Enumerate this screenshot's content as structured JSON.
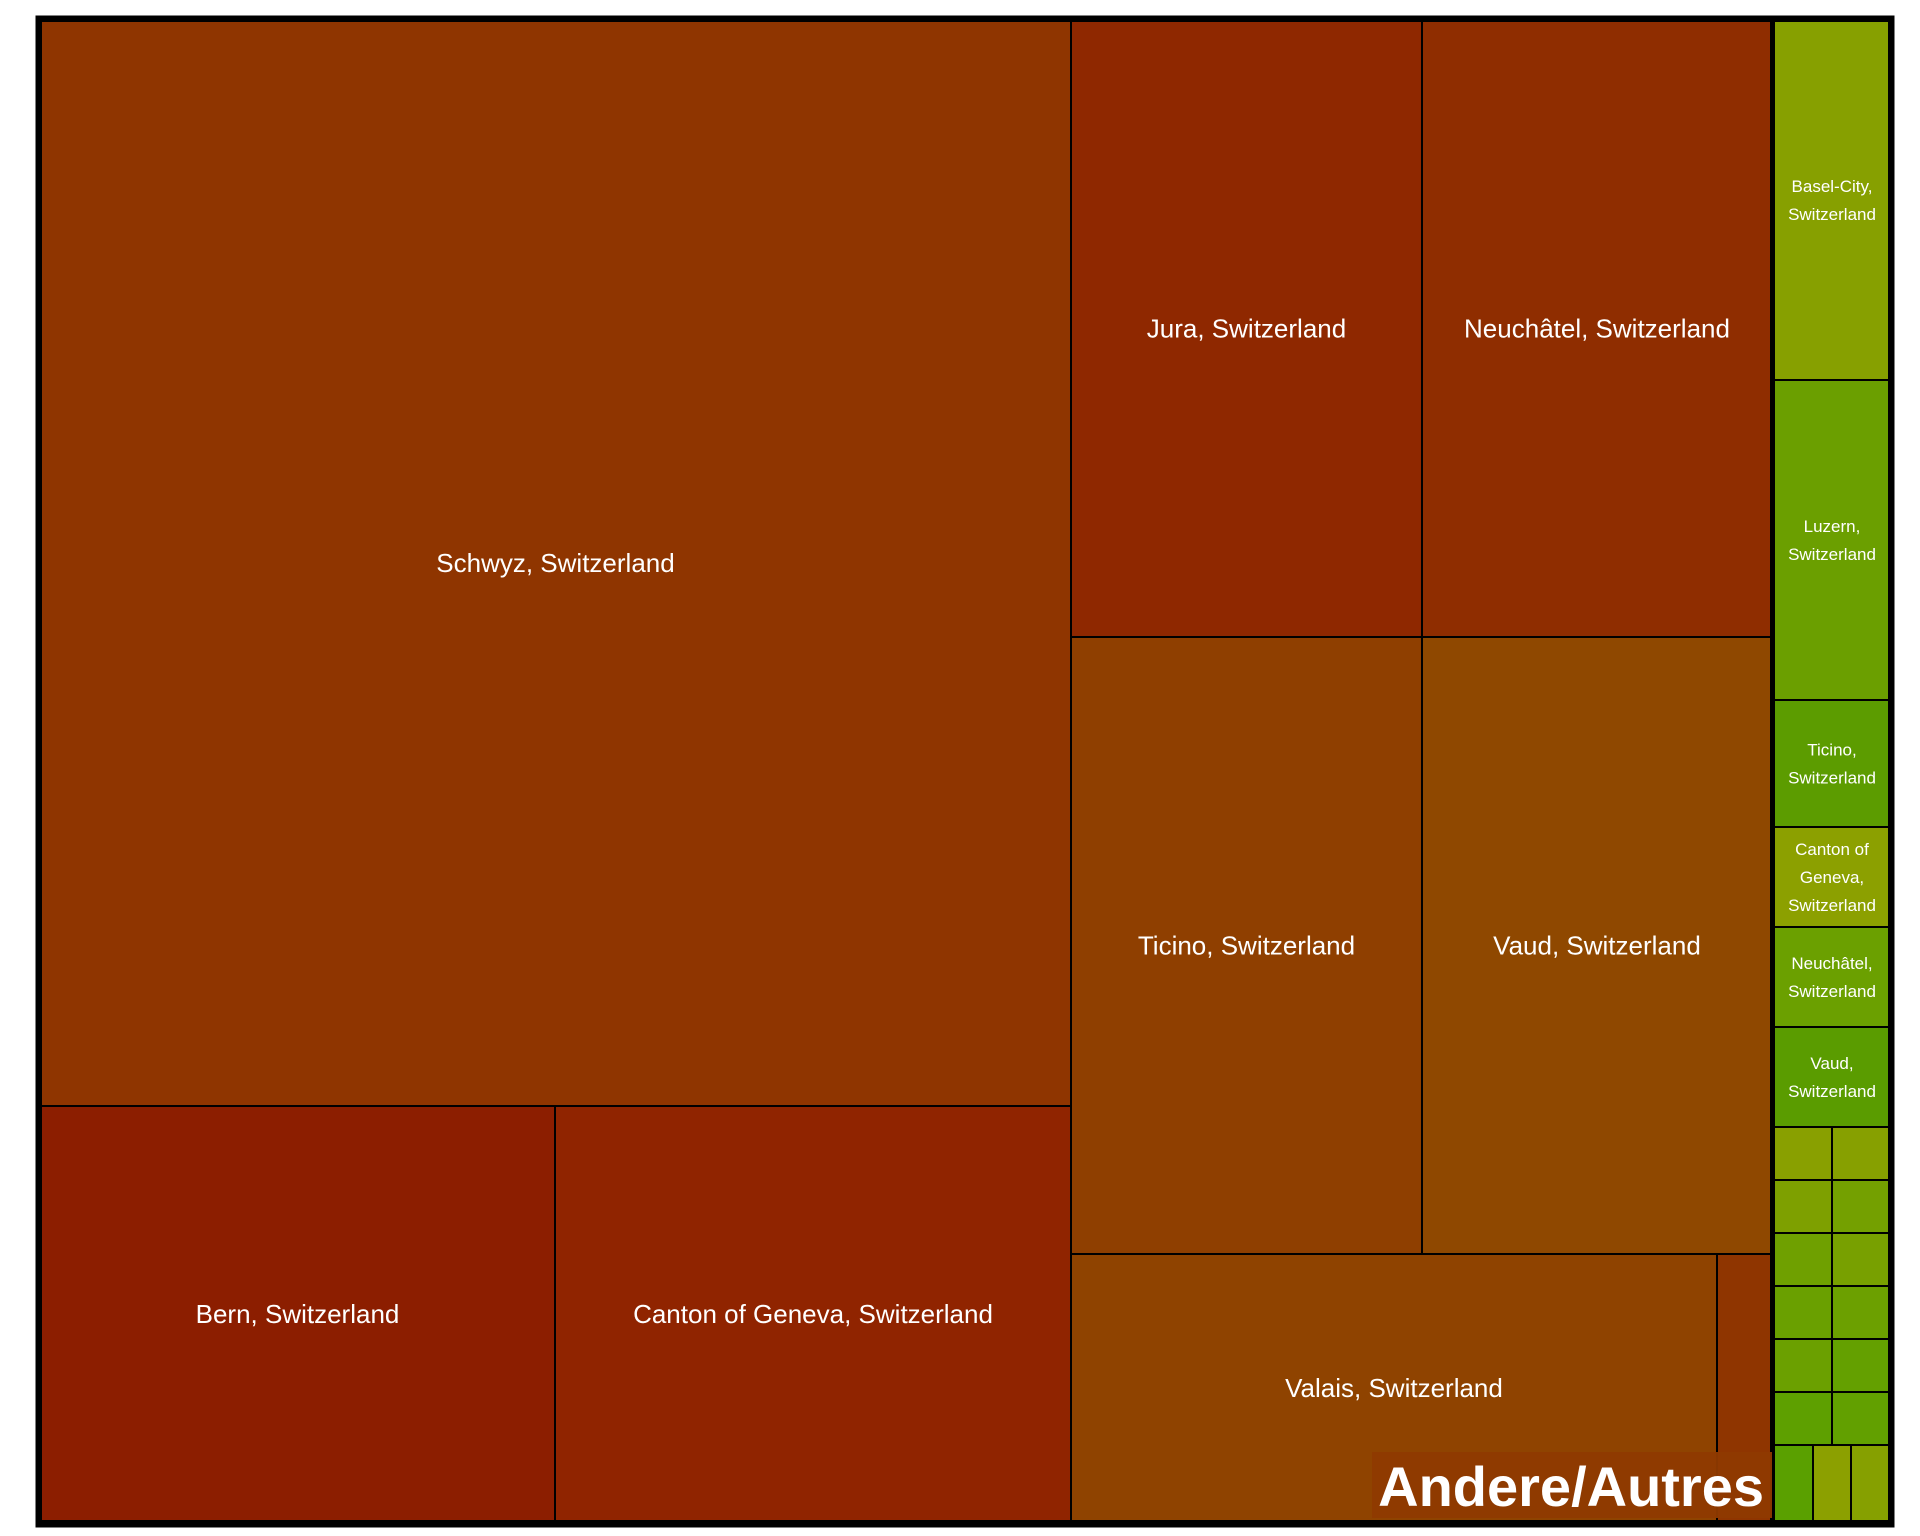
{
  "chart_data": {
    "type": "treemap",
    "groups": [
      {
        "label": "Andere/Autres",
        "color": "#8f3a00",
        "tiles": [
          {
            "label": "Schwyz, Switzerland",
            "value": 28,
            "color": "#8f3500"
          },
          {
            "label": "Bern, Switzerland",
            "value": 5.5,
            "color": "#8c1e00"
          },
          {
            "label": "Canton of Geneva, Switzerland",
            "value": 5.5,
            "color": "#902400"
          },
          {
            "label": "Jura, Switzerland",
            "value": 5.4,
            "color": "#8f2800"
          },
          {
            "label": "Neuchâtel, Switzerland",
            "value": 5.4,
            "color": "#8f2d00"
          },
          {
            "label": "Ticino, Switzerland",
            "value": 5.4,
            "color": "#8f3f00"
          },
          {
            "label": "Vaud, Switzerland",
            "value": 5.4,
            "color": "#8f4800"
          },
          {
            "label": "Valais, Switzerland",
            "value": 2.7,
            "color": "#8f4300"
          },
          {
            "label": "",
            "value": 0.4,
            "color": "#8f3500"
          }
        ]
      },
      {
        "label": "",
        "color": "#6fa000",
        "tiles": [
          {
            "label": "Basel-City, Switzerland",
            "value": 2.9,
            "color": "#87a000"
          },
          {
            "label": "Luzern, Switzerland",
            "value": 2.6,
            "color": "#6b9f00"
          },
          {
            "label": "Ticino, Switzerland",
            "value": 1.0,
            "color": "#5c9c00"
          },
          {
            "label": "Canton of Geneva, Switzerland",
            "value": 0.8,
            "color": "#8ca000"
          },
          {
            "label": "Neuchâtel, Switzerland",
            "value": 0.8,
            "color": "#6ba000"
          },
          {
            "label": "Vaud, Switzerland",
            "value": 0.8,
            "color": "#5a9c00"
          },
          {
            "label": "",
            "value": 0.2,
            "color": "#89a000"
          },
          {
            "label": "",
            "value": 0.2,
            "color": "#87a000"
          },
          {
            "label": "",
            "value": 0.2,
            "color": "#7ea000"
          },
          {
            "label": "",
            "value": 0.2,
            "color": "#74a000"
          },
          {
            "label": "",
            "value": 0.2,
            "color": "#6fa000"
          },
          {
            "label": "",
            "value": 0.2,
            "color": "#78a000"
          },
          {
            "label": "",
            "value": 0.2,
            "color": "#6aa000"
          },
          {
            "label": "",
            "value": 0.2,
            "color": "#6ca000"
          },
          {
            "label": "",
            "value": 0.2,
            "color": "#6ba000"
          },
          {
            "label": "",
            "value": 0.2,
            "color": "#64a000"
          },
          {
            "label": "",
            "value": 0.2,
            "color": "#5ea000"
          },
          {
            "label": "",
            "value": 0.2,
            "color": "#62a000"
          },
          {
            "label": "",
            "value": 0.15,
            "color": "#5aa000"
          },
          {
            "label": "",
            "value": 0.15,
            "color": "#8ca000"
          },
          {
            "label": "",
            "value": 0.15,
            "color": "#86a000"
          }
        ]
      }
    ]
  }
}
